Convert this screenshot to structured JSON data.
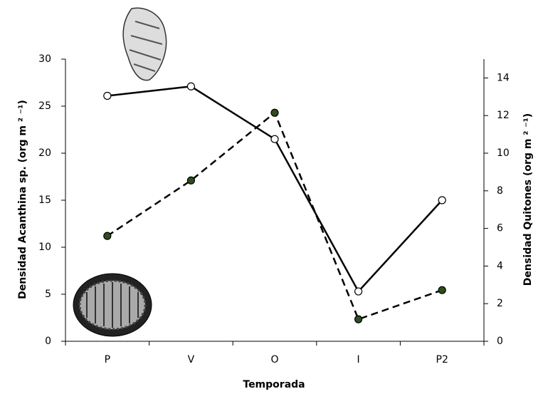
{
  "chart_data": {
    "type": "line",
    "xlabel": "Temporada",
    "ylabel": "Densidad Acanthina sp. (org  m ² ⁻¹)",
    "y2label": "Densidad Quitones (org  m ² ⁻¹)",
    "categories": [
      "P",
      "V",
      "O",
      "I",
      "P2"
    ],
    "ylim": [
      0,
      30
    ],
    "yticks": [
      0,
      5,
      10,
      15,
      20,
      25,
      30
    ],
    "y2lim": [
      0,
      15
    ],
    "y2ticks": [
      0,
      2,
      4,
      6,
      8,
      10,
      12,
      14
    ],
    "series": [
      {
        "color": "#000000",
        "values": [
          26.1,
          27.1,
          21.5,
          5.3,
          15.0
        ]
      },
      {
        "color": "#000000",
        "axis": "y2",
        "values": [
          5.6,
          8.55,
          12.15,
          1.17,
          2.72
        ]
      }
    ]
  }
}
